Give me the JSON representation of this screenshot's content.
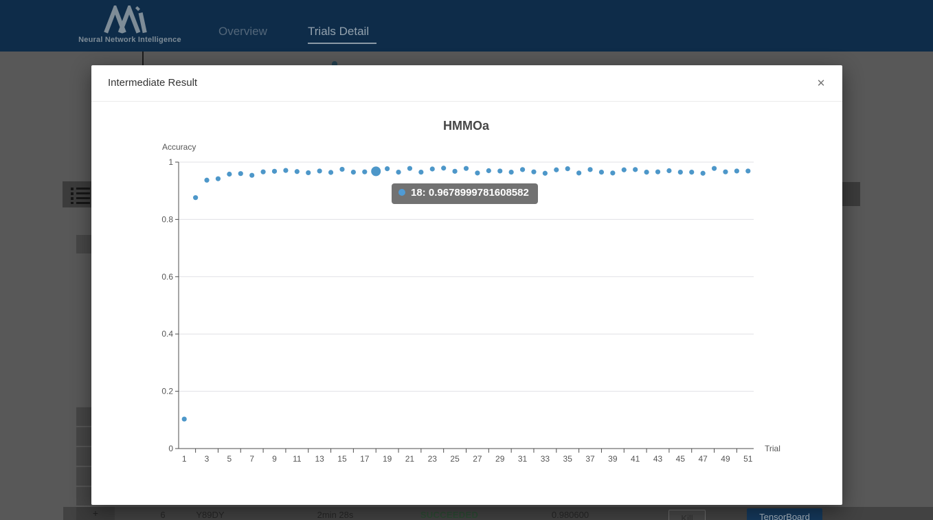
{
  "nav": {
    "brand": "Neural Network Intelligence",
    "tabs": [
      {
        "label": "Overview",
        "active": false
      },
      {
        "label": "Trials Detail",
        "active": true
      }
    ]
  },
  "modal": {
    "title": "Intermediate Result",
    "close_glyph": "✕"
  },
  "chart_data": {
    "type": "scatter",
    "title": "HMMOa",
    "xlabel": "Trial",
    "ylabel": "Accuracy",
    "xlim": [
      1,
      51
    ],
    "ylim": [
      0,
      1
    ],
    "grid": true,
    "y_ticks": [
      0,
      0.2,
      0.4,
      0.6,
      0.8,
      1
    ],
    "x_tick_labels": [
      "1",
      "3",
      "5",
      "7",
      "9",
      "11",
      "13",
      "15",
      "17",
      "19",
      "21",
      "23",
      "25",
      "27",
      "29",
      "31",
      "33",
      "35",
      "37",
      "39",
      "41",
      "43",
      "45",
      "47",
      "49",
      "51"
    ],
    "x": [
      1,
      2,
      3,
      4,
      5,
      6,
      7,
      8,
      9,
      10,
      11,
      12,
      13,
      14,
      15,
      16,
      17,
      18,
      19,
      20,
      21,
      22,
      23,
      24,
      25,
      26,
      27,
      28,
      29,
      30,
      31,
      32,
      33,
      34,
      35,
      36,
      37,
      38,
      39,
      40,
      41,
      42,
      43,
      44,
      45,
      46,
      47,
      48,
      49,
      50,
      51
    ],
    "y": [
      0.103,
      0.876,
      0.937,
      0.942,
      0.958,
      0.96,
      0.954,
      0.966,
      0.968,
      0.971,
      0.967,
      0.963,
      0.969,
      0.964,
      0.975,
      0.965,
      0.966,
      0.9678999781608582,
      0.977,
      0.965,
      0.978,
      0.965,
      0.976,
      0.979,
      0.968,
      0.978,
      0.962,
      0.97,
      0.969,
      0.965,
      0.974,
      0.966,
      0.961,
      0.973,
      0.977,
      0.962,
      0.974,
      0.965,
      0.962,
      0.973,
      0.974,
      0.965,
      0.966,
      0.97,
      0.965,
      0.965,
      0.961,
      0.978,
      0.966,
      0.969,
      0.969
    ],
    "highlight": {
      "index": 18,
      "value": 0.9678999781608582,
      "tooltip_text": "18: 0.9678999781608582"
    },
    "colors": {
      "point": "#4d97c9",
      "axis": "#4d4d4d",
      "gridline": "#e0e0e6",
      "tick_label": "#555555"
    }
  },
  "background": {
    "trial_row": {
      "expand": "+",
      "sequence": "6",
      "id": "Y89DY",
      "duration": "2min 28s",
      "status": "SUCCEEDED",
      "default_metric": "0.980600",
      "kill_button": "Kill",
      "tensorboard_button": "TensorBoard"
    },
    "colors": {
      "status_succeeded": "#2c4a33",
      "tensorboard_bg": "#15395c",
      "nav_bg": "#0e2c49"
    }
  }
}
